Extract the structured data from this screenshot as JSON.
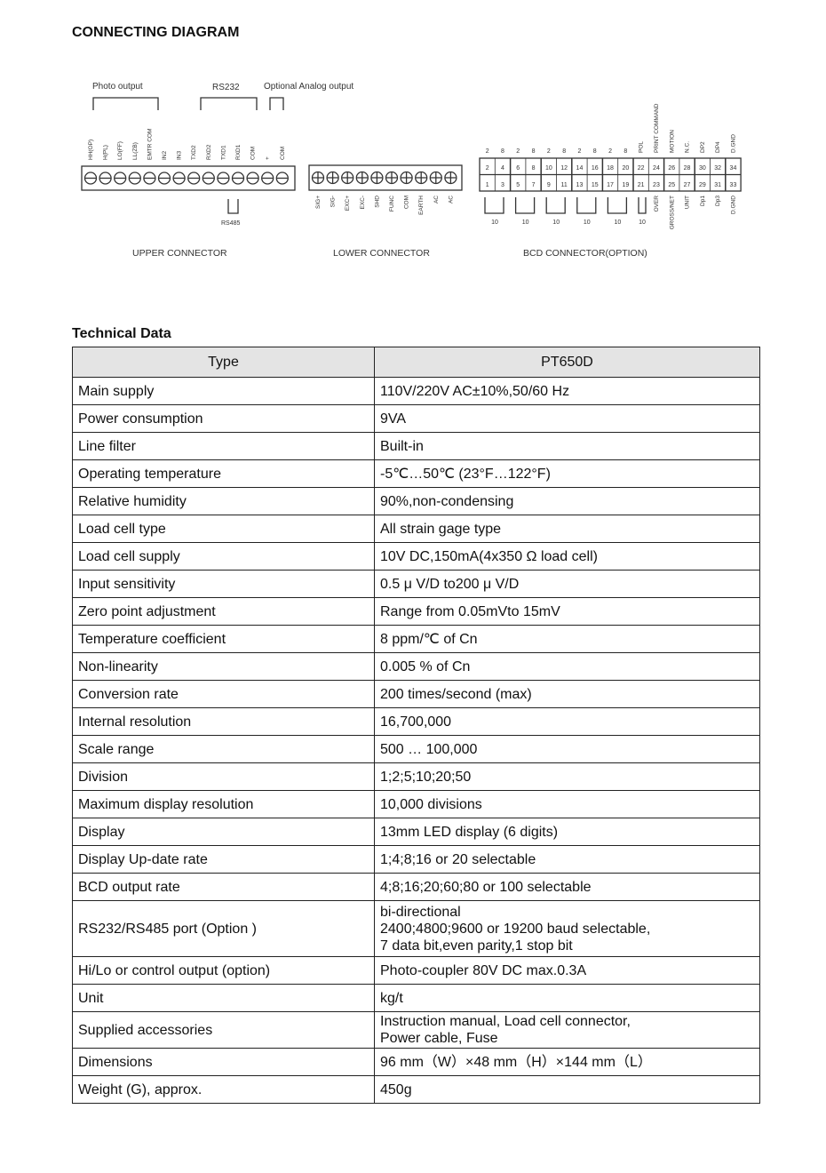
{
  "diagram": {
    "title": "CONNECTING DIAGRAM",
    "upper": {
      "group_labels": [
        "Photo output",
        "RS232",
        "Optional Analog output"
      ],
      "pins": [
        "HH(OP)",
        "H(PL)",
        "LO(FF)",
        "LL(ZB)",
        "EMTR COM",
        "IN2",
        "IN3",
        "TXD2",
        "RXD2",
        "TXD1",
        "RXD1",
        "COM",
        "+",
        "COM"
      ],
      "rs485_label": "RS485",
      "caption": "UPPER CONNECTOR"
    },
    "lower": {
      "pins": [
        "SIG+",
        "SIG-",
        "EXC+",
        "EXC-",
        "SHD",
        "FUNC",
        "COM",
        "EARTH",
        "AC",
        "AC"
      ],
      "caption": "LOWER CONNECTOR"
    },
    "bcd": {
      "top_labels": [
        "2",
        "8",
        "2",
        "8",
        "2",
        "8",
        "2",
        "8",
        "2",
        "8",
        "POL",
        "PRINT COMMAND",
        "MOTION",
        "N.C.",
        "DP2",
        "DP4",
        "D.GND"
      ],
      "top_row": [
        "2",
        "4",
        "6",
        "8",
        "10",
        "12",
        "14",
        "16",
        "18",
        "20",
        "22",
        "24",
        "26",
        "28",
        "30",
        "32",
        "34"
      ],
      "bottom_row": [
        "1",
        "3",
        "5",
        "7",
        "9",
        "11",
        "13",
        "15",
        "17",
        "19",
        "21",
        "23",
        "25",
        "27",
        "29",
        "31",
        "33"
      ],
      "bottom_labels": [
        "OVER",
        "GROSS/NET",
        "UNIT",
        "Dp1",
        "Dp3",
        "D.GND"
      ],
      "decade_labels": [
        "10",
        "10",
        "10",
        "10",
        "10",
        "10"
      ],
      "caption": "BCD CONNECTOR(OPTION)"
    }
  },
  "technical": {
    "title": "Technical Data",
    "header": [
      "Type",
      "PT650D"
    ],
    "rows": [
      [
        "Main supply",
        "110V/220V AC±10%,50/60 Hz"
      ],
      [
        "Power consumption",
        "9VA"
      ],
      [
        "Line filter",
        "Built-in"
      ],
      [
        "Operating temperature",
        "-5℃…50℃ (23°F…122°F)"
      ],
      [
        "Relative humidity",
        "90%,non-condensing"
      ],
      [
        "Load cell type",
        "All strain gage type"
      ],
      [
        "Load cell supply",
        "10V DC,150mA(4x350 Ω load cell)"
      ],
      [
        "Input sensitivity",
        "0.5 μ V/D to200 μ V/D"
      ],
      [
        "Zero point adjustment",
        "Range from 0.05mVto 15mV"
      ],
      [
        "Temperature coefficient",
        "8 ppm/℃ of Cn"
      ],
      [
        "Non-linearity",
        "0.005 % of Cn"
      ],
      [
        "Conversion rate",
        "200 times/second (max)"
      ],
      [
        "Internal resolution",
        "16,700,000"
      ],
      [
        "Scale range",
        "500 … 100,000"
      ],
      [
        "Division",
        "1;2;5;10;20;50"
      ],
      [
        "Maximum display resolution",
        "10,000 divisions"
      ],
      [
        "Display",
        "13mm LED display (6 digits)"
      ],
      [
        "Display Up-date rate",
        "1;4;8;16 or 20 selectable"
      ],
      [
        "BCD output rate",
        "4;8;16;20;60;80 or 100 selectable"
      ],
      [
        "RS232/RS485 port (Option )",
        "bi-directional\n2400;4800;9600 or 19200 baud selectable,\n7 data bit,even parity,1 stop bit"
      ],
      [
        "Hi/Lo or control output (option)",
        "Photo-coupler 80V DC max.0.3A"
      ],
      [
        "Unit",
        "kg/t"
      ],
      [
        "Supplied accessories",
        "Instruction manual, Load cell connector,\nPower cable, Fuse"
      ],
      [
        "Dimensions",
        "96 mm（W）×48 mm（H）×144 mm（L）"
      ],
      [
        "Weight (G), approx.",
        "450g"
      ]
    ]
  }
}
